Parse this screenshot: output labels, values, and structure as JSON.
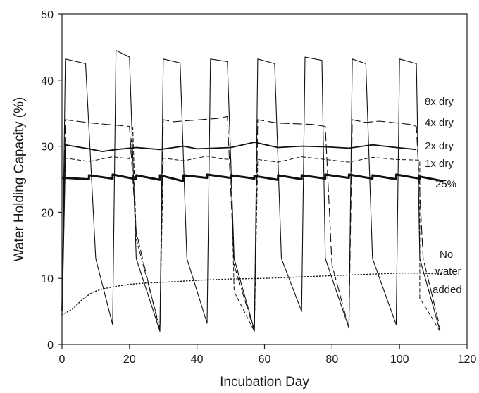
{
  "chart_data": {
    "type": "line",
    "title": "",
    "xlabel": "Incubation Day",
    "ylabel": "Water Holding Capacity (%)",
    "xlim": [
      0,
      120
    ],
    "ylim": [
      0,
      50
    ],
    "xticks": [
      0,
      20,
      40,
      60,
      80,
      100,
      120
    ],
    "yticks": [
      0,
      10,
      20,
      30,
      40,
      50
    ],
    "grid": false,
    "legend": "none",
    "series": [
      {
        "name": "8x dry",
        "label_lines": [
          "8x dry"
        ],
        "style": "thin-solid",
        "x": [
          0,
          1,
          7,
          10,
          15,
          15,
          16,
          20,
          22,
          29,
          29,
          30,
          35,
          37,
          43,
          43,
          44,
          49,
          51,
          57,
          57,
          58,
          63,
          65,
          71,
          71,
          72,
          77,
          78,
          85,
          85,
          86,
          90,
          92,
          99,
          99,
          100,
          105,
          106,
          112
        ],
        "y": [
          5,
          43.2,
          42.5,
          13,
          3,
          3,
          44.5,
          43.5,
          13,
          2,
          2,
          43.2,
          42.6,
          13,
          3.2,
          3.2,
          43.2,
          42.8,
          13,
          2.2,
          2.2,
          43.2,
          42.5,
          13,
          5,
          5,
          43.5,
          43,
          13,
          2.5,
          2.5,
          43.2,
          42.5,
          13,
          3,
          3,
          43.2,
          42.5,
          13,
          2
        ]
      },
      {
        "name": "4x dry",
        "label_lines": [
          "4x dry"
        ],
        "style": "long-dash",
        "x": [
          0,
          1,
          9,
          9,
          20,
          20,
          22,
          29,
          29,
          30,
          33,
          33,
          46,
          46,
          49,
          51,
          57,
          57,
          58,
          64,
          64,
          74,
          74,
          78,
          80,
          85,
          85,
          86,
          90,
          90,
          94,
          94,
          103,
          103,
          105,
          107,
          112
        ],
        "y": [
          5,
          34,
          33.5,
          33.5,
          33,
          33,
          17,
          2,
          2,
          34,
          33.7,
          33.7,
          34.2,
          34.2,
          34.5,
          12,
          2,
          2,
          34,
          33.5,
          33.5,
          33.3,
          33.3,
          33,
          12,
          2.5,
          2.5,
          34,
          33.6,
          33.6,
          33.8,
          33.8,
          33.3,
          33.3,
          33,
          13,
          2.5
        ]
      },
      {
        "name": "2x dry",
        "label_lines": [
          "2x dry"
        ],
        "style": "medium-solid",
        "x": [
          0,
          1,
          8,
          8,
          12,
          12,
          16,
          16,
          22,
          22,
          29,
          29,
          36,
          36,
          40,
          40,
          50,
          50,
          57,
          57,
          64,
          64,
          71,
          71,
          78,
          78,
          85,
          85,
          92,
          92,
          99,
          99,
          105
        ],
        "y": [
          5,
          30.2,
          29.6,
          29.6,
          29.2,
          29.2,
          29.5,
          29.5,
          29.8,
          29.8,
          29.5,
          29.5,
          30,
          30,
          29.6,
          29.6,
          29.8,
          29.8,
          30.6,
          30.6,
          29.8,
          29.8,
          30,
          30,
          29.9,
          29.9,
          29.7,
          29.7,
          30.2,
          30.2,
          29.8,
          29.8,
          29.5
        ]
      },
      {
        "name": "1x dry",
        "label_lines": [
          "1x dry"
        ],
        "style": "short-dash",
        "x": [
          0,
          1,
          8,
          8,
          15,
          15,
          20,
          20,
          21,
          22,
          29,
          29,
          30,
          36,
          36,
          43,
          43,
          47,
          47,
          50,
          51,
          57,
          57,
          58,
          64,
          64,
          71,
          71,
          78,
          78,
          85,
          85,
          92,
          92,
          99,
          99,
          106,
          106,
          112
        ],
        "y": [
          5,
          28.2,
          27.7,
          27.7,
          28.4,
          28.4,
          28.1,
          28.1,
          32.8,
          16,
          2.5,
          2.5,
          28.2,
          27.8,
          27.8,
          28.5,
          28.5,
          28.1,
          28.1,
          28,
          8,
          2,
          2,
          28,
          27.6,
          27.6,
          28.4,
          28.4,
          28,
          28,
          27.6,
          27.6,
          28.3,
          28.3,
          28,
          28,
          27.9,
          7,
          2
        ]
      },
      {
        "name": "25%",
        "label_lines": [
          "25%"
        ],
        "style": "thick-solid",
        "x": [
          0,
          1,
          8,
          8,
          15,
          15,
          22,
          22,
          29,
          29,
          36,
          36,
          43,
          43,
          50,
          50,
          57,
          57,
          64,
          64,
          71,
          71,
          78,
          78,
          85,
          85,
          92,
          92,
          99,
          99,
          106,
          106,
          113
        ],
        "y": [
          25.2,
          25.2,
          25,
          25.6,
          25.1,
          25.7,
          25,
          25.6,
          24.9,
          25.6,
          24.7,
          25.6,
          25.2,
          25.7,
          25.2,
          25.6,
          25.1,
          25.5,
          24.9,
          25.6,
          25,
          25.6,
          25.1,
          25.7,
          25.2,
          25.7,
          25.1,
          25.6,
          25,
          25.7,
          25.1,
          25.4,
          24.7
        ]
      },
      {
        "name": "No water added",
        "label_lines": [
          "No",
          "water",
          "added"
        ],
        "style": "dotted",
        "x": [
          0,
          3,
          6,
          9,
          12,
          16,
          20,
          25,
          30,
          40,
          50,
          60,
          70,
          80,
          90,
          100,
          105,
          110,
          113
        ],
        "y": [
          4.5,
          5.3,
          6.8,
          7.9,
          8.4,
          8.8,
          9.1,
          9.3,
          9.4,
          9.7,
          9.9,
          10,
          10.2,
          10.4,
          10.6,
          10.8,
          10.8,
          10.7,
          10.6
        ]
      }
    ]
  }
}
